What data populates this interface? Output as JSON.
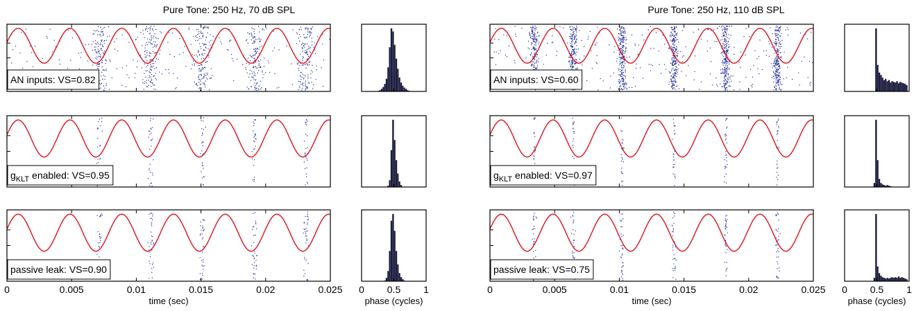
{
  "colors": {
    "stimulus": "#e0121b",
    "spikes": "#1f2a9a",
    "hist_bar": "#1a1a3a",
    "axis": "#000000"
  },
  "chart_data": [
    {
      "type": "scatter",
      "title": "Pure Tone: 250 Hz, 70 dB SPL",
      "xlabel": "time (sec)",
      "xlim": [
        0,
        0.025
      ],
      "xticks": [
        "0",
        "0.005",
        "0.01",
        "0.015",
        "0.02",
        "0.025"
      ],
      "stimulus_frequency_hz": 250,
      "spike_times_sec": [
        0.0071,
        0.0111,
        0.0151,
        0.0191,
        0.0231
      ],
      "panels": [
        {
          "label": "AN inputs: VS=0.82",
          "label_parts": [
            "AN inputs: VS=0.82"
          ],
          "vs": 0.82
        },
        {
          "label": "gKLT enabled: VS=0.95",
          "label_parts": [
            "g",
            "KLT",
            " enabled: VS=0.95"
          ],
          "vs": 0.95
        },
        {
          "label": "passive leak: VS=0.90",
          "label_parts": [
            "passive leak: VS=0.90"
          ],
          "vs": 0.9
        }
      ],
      "histogram": {
        "type": "bar",
        "xlabel": "phase (cycles)",
        "xlim": [
          0,
          1
        ],
        "xticks": [
          "0",
          "0.5",
          "1"
        ],
        "bin_width": 0.025,
        "rows": [
          [
            0,
            0,
            0,
            0,
            0,
            0,
            0,
            0,
            0,
            0,
            0.01,
            0.02,
            0.04,
            0.07,
            0.12,
            0.2,
            0.38,
            0.7,
            1.0,
            0.95,
            0.74,
            0.52,
            0.36,
            0.22,
            0.14,
            0.09,
            0.06,
            0.04,
            0.02,
            0.01,
            0,
            0,
            0,
            0,
            0,
            0,
            0,
            0,
            0,
            0
          ],
          [
            0,
            0,
            0,
            0,
            0,
            0,
            0,
            0,
            0,
            0,
            0,
            0,
            0,
            0,
            0,
            0,
            0.02,
            0.1,
            0.55,
            1.0,
            0.7,
            0.4,
            0.2,
            0.08,
            0.03,
            0,
            0,
            0,
            0,
            0,
            0,
            0,
            0,
            0,
            0,
            0,
            0,
            0,
            0,
            0
          ],
          [
            0,
            0,
            0,
            0,
            0,
            0,
            0,
            0,
            0,
            0,
            0,
            0,
            0,
            0,
            0.01,
            0.05,
            0.15,
            0.45,
            0.9,
            1.0,
            0.75,
            0.45,
            0.25,
            0.12,
            0.06,
            0.03,
            0.01,
            0,
            0,
            0,
            0,
            0,
            0,
            0,
            0,
            0,
            0,
            0,
            0,
            0
          ]
        ]
      }
    },
    {
      "type": "scatter",
      "title": "Pure Tone: 250 Hz, 110 dB SPL",
      "xlabel": "time (sec)",
      "xlim": [
        0,
        0.025
      ],
      "xticks": [
        "0",
        "0.005",
        "0.01",
        "0.015",
        "0.02",
        "0.025"
      ],
      "stimulus_frequency_hz": 250,
      "spike_times_sec": [
        0.0034,
        0.0064,
        0.0102,
        0.0142,
        0.0182,
        0.0222
      ],
      "panels": [
        {
          "label": "AN inputs: VS=0.60",
          "label_parts": [
            "AN inputs: VS=0.60"
          ],
          "vs": 0.6
        },
        {
          "label": "gKLT enabled: VS=0.97",
          "label_parts": [
            "g",
            "KLT",
            " enabled: VS=0.97"
          ],
          "vs": 0.97
        },
        {
          "label": "passive leak: VS=0.75",
          "label_parts": [
            "passive leak: VS=0.75"
          ],
          "vs": 0.75
        }
      ],
      "histogram": {
        "type": "bar",
        "xlabel": "phase (cycles)",
        "xlim": [
          0,
          1
        ],
        "xticks": [
          "0",
          "0.5",
          "1"
        ],
        "bin_width": 0.025,
        "rows": [
          [
            0,
            0,
            0,
            0,
            0,
            0,
            0,
            0,
            0,
            0,
            0,
            0,
            0,
            0,
            0,
            0,
            0,
            0,
            0,
            1.0,
            0.42,
            0.3,
            0.26,
            0.22,
            0.18,
            0.2,
            0.16,
            0.18,
            0.14,
            0.16,
            0.15,
            0.14,
            0.16,
            0.13,
            0.15,
            0.14,
            0.13,
            0.12,
            0.1,
            0.0
          ],
          [
            0,
            0,
            0,
            0,
            0,
            0,
            0,
            0,
            0,
            0,
            0,
            0,
            0,
            0,
            0,
            0,
            0,
            0,
            0.06,
            1.0,
            0.4,
            0.12,
            0.06,
            0.04,
            0.03,
            0.02,
            0.03,
            0.02,
            0.01,
            0,
            0,
            0,
            0,
            0,
            0,
            0,
            0,
            0,
            0,
            0
          ],
          [
            0,
            0,
            0,
            0,
            0,
            0,
            0,
            0,
            0,
            0,
            0,
            0,
            0,
            0,
            0,
            0,
            0,
            0,
            0.05,
            1.0,
            0.22,
            0.12,
            0.08,
            0.06,
            0.05,
            0.04,
            0.05,
            0.04,
            0.05,
            0.06,
            0.05,
            0.06,
            0.05,
            0.07,
            0.05,
            0.06,
            0.05,
            0.04,
            0.03,
            0
          ]
        ]
      }
    }
  ]
}
